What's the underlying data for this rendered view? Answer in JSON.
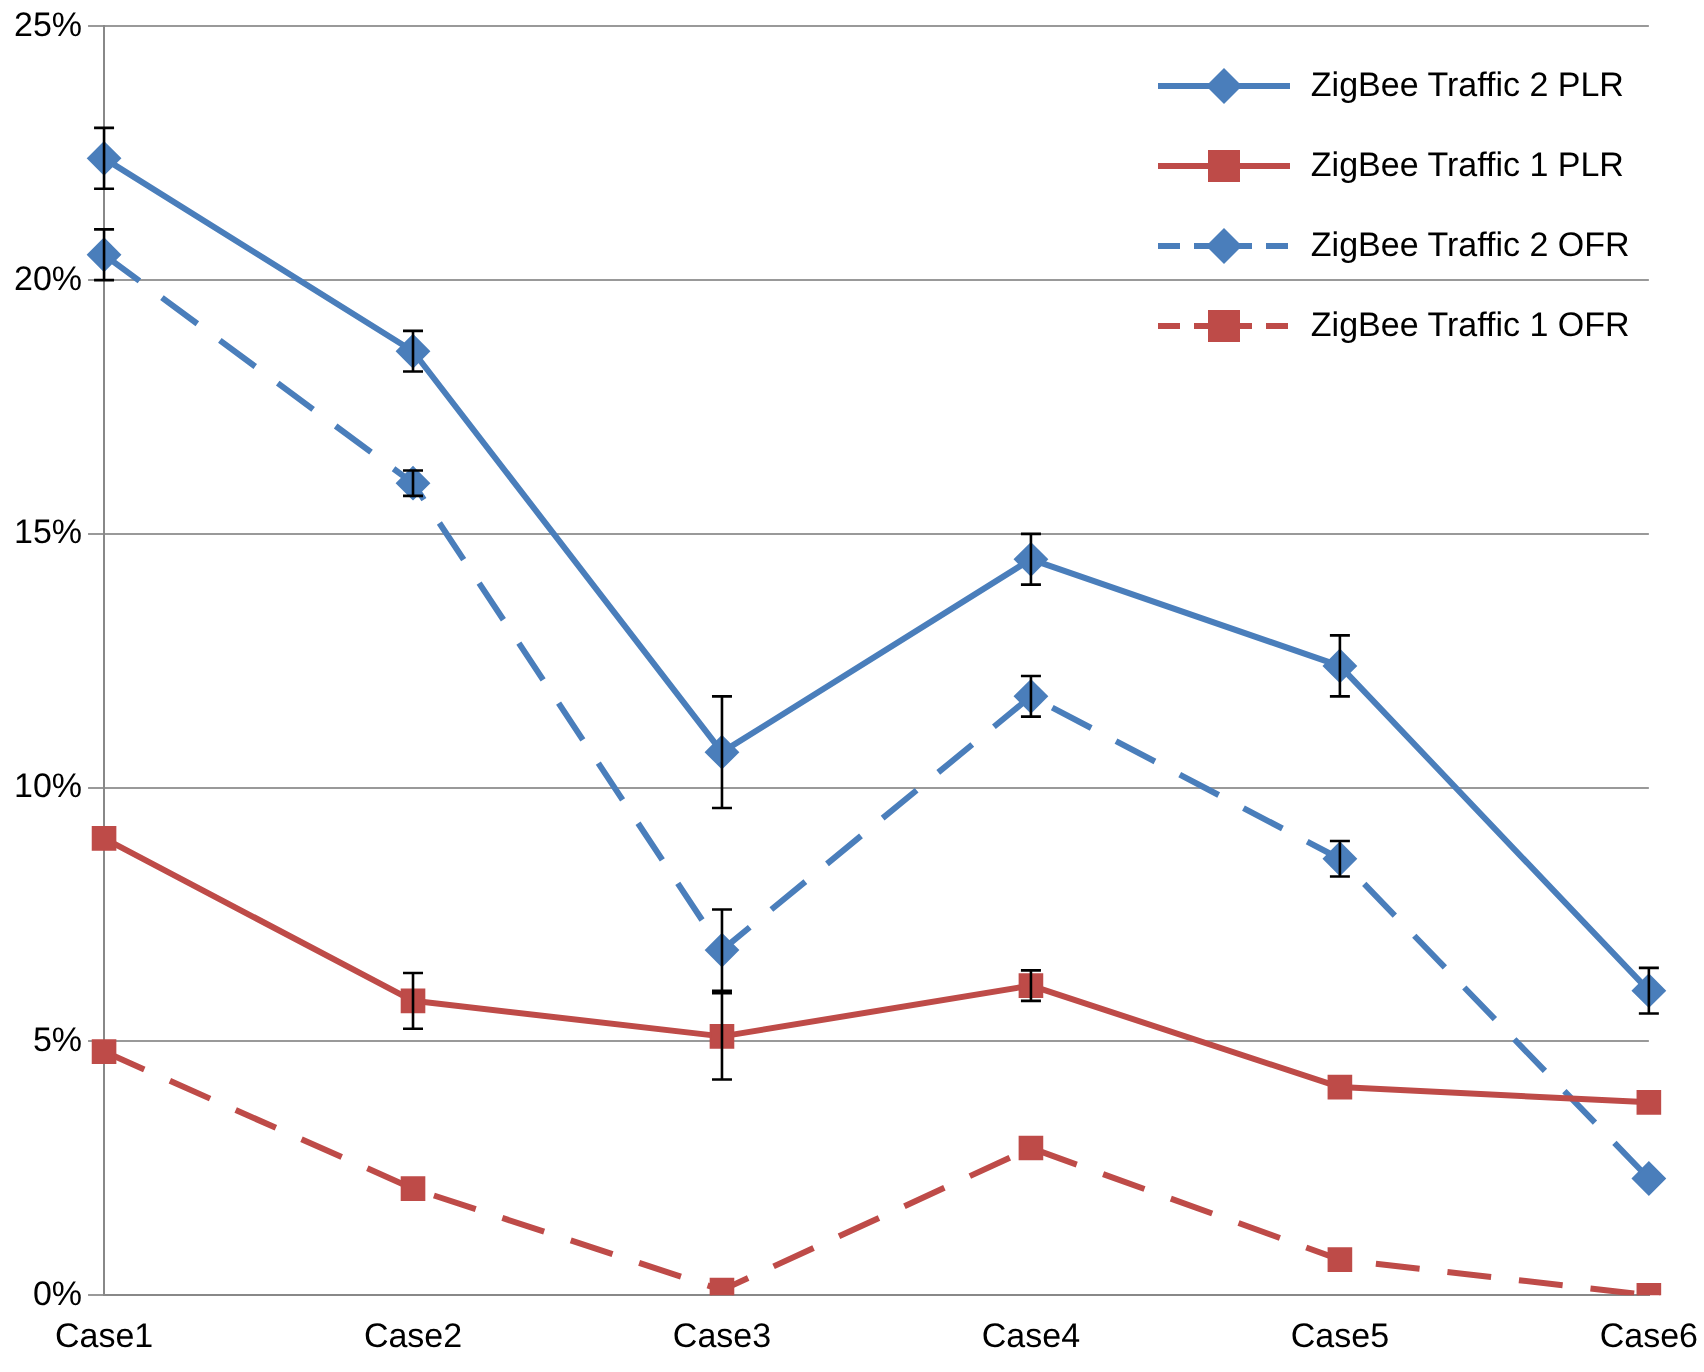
{
  "chart_data": {
    "type": "line",
    "categories": [
      "Case1",
      "Case2",
      "Case3",
      "Case4",
      "Case5",
      "Case6"
    ],
    "ylim": [
      0,
      25
    ],
    "yticks": [
      {
        "value": 0,
        "label": "0%"
      },
      {
        "value": 5,
        "label": "5%"
      },
      {
        "value": 10,
        "label": "10%"
      },
      {
        "value": 15,
        "label": "15%"
      },
      {
        "value": 20,
        "label": "20%"
      },
      {
        "value": 25,
        "label": "25%"
      }
    ],
    "grid": "y",
    "legend": "top right",
    "series": [
      {
        "name": "ZigBee Traffic 2 PLR",
        "color": "#4a7ebb",
        "marker": "diamond",
        "line_style": "solid",
        "values": [
          22.4,
          18.6,
          10.7,
          14.5,
          12.4,
          6.0
        ],
        "errors": [
          0.6,
          0.4,
          1.1,
          0.5,
          0.6,
          0.45
        ]
      },
      {
        "name": "ZigBee Traffic 1 PLR",
        "color": "#be4b48",
        "marker": "square",
        "line_style": "solid",
        "values": [
          9.0,
          5.8,
          5.1,
          6.1,
          4.1,
          3.8
        ],
        "errors": [
          null,
          0.55,
          0.85,
          0.3,
          null,
          null
        ]
      },
      {
        "name": "ZigBee Traffic 2 OFR",
        "color": "#4a7ebb",
        "marker": "diamond",
        "line_style": "dashed",
        "values": [
          20.5,
          16.0,
          6.8,
          11.8,
          8.6,
          2.3
        ],
        "errors": [
          0.5,
          0.25,
          0.8,
          0.4,
          0.35,
          null
        ]
      },
      {
        "name": "ZigBee Traffic 1 OFR",
        "color": "#be4b48",
        "marker": "square",
        "line_style": "dashed",
        "values": [
          4.8,
          2.1,
          0.1,
          2.9,
          0.7,
          0.0
        ]
      }
    ]
  }
}
